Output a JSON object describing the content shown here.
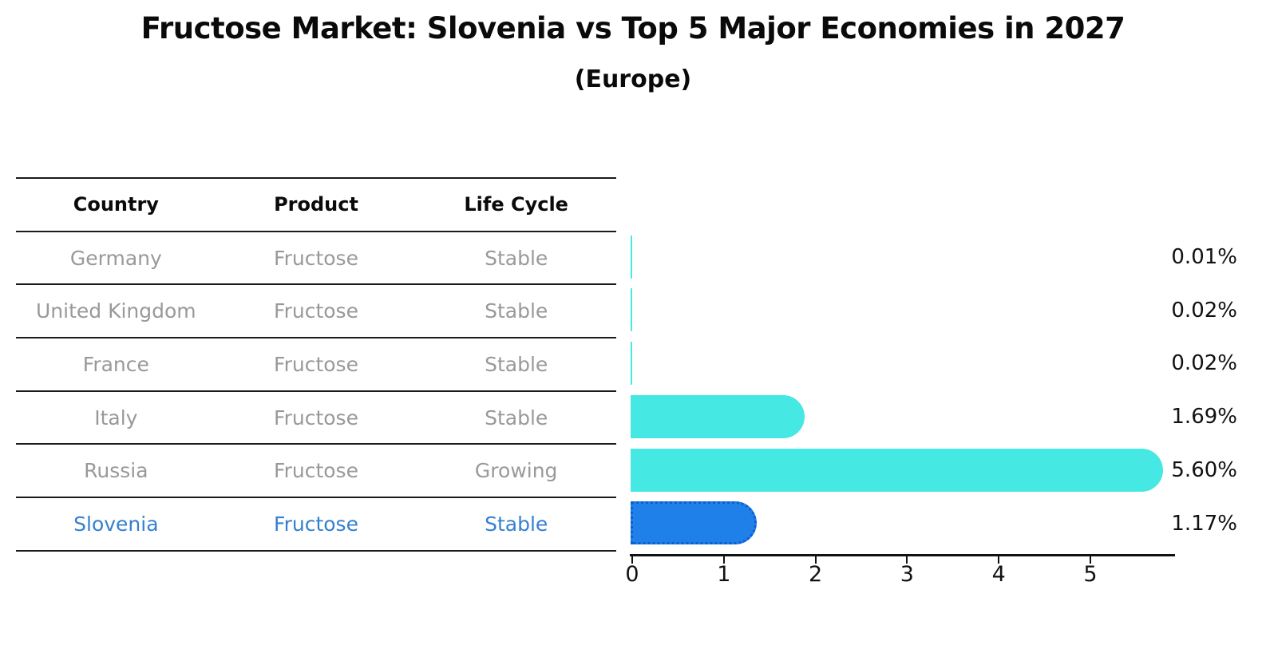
{
  "header": {
    "title": "Fructose Market: Slovenia vs Top 5 Major Economies in 2027",
    "subtitle": "(Europe)"
  },
  "table": {
    "headers": [
      "Country",
      "Product",
      "Life Cycle"
    ],
    "rows": [
      {
        "country": "Germany",
        "product": "Fructose",
        "life_cycle": "Stable",
        "highlighted": false
      },
      {
        "country": "United Kingdom",
        "product": "Fructose",
        "life_cycle": "Stable",
        "highlighted": false
      },
      {
        "country": "France",
        "product": "Fructose",
        "life_cycle": "Stable",
        "highlighted": false
      },
      {
        "country": "Italy",
        "product": "Fructose",
        "life_cycle": "Stable",
        "highlighted": false
      },
      {
        "country": "Russia",
        "product": "Fructose",
        "life_cycle": "Growing",
        "highlighted": false
      },
      {
        "country": "Slovenia",
        "product": "Fructose",
        "life_cycle": "Stable",
        "highlighted": true
      }
    ]
  },
  "chart_data": {
    "type": "bar",
    "orientation": "horizontal",
    "title": "Fructose Market: Slovenia vs Top 5 Major Economies in 2027",
    "subtitle": "(Europe)",
    "categories": [
      "Germany",
      "United Kingdom",
      "France",
      "Italy",
      "Russia",
      "Slovenia"
    ],
    "values": [
      0.01,
      0.02,
      0.02,
      1.69,
      5.6,
      1.17
    ],
    "value_labels": [
      "0.01%",
      "0.02%",
      "0.02%",
      "1.69%",
      "5.60%",
      "1.17%"
    ],
    "x_ticks": [
      0,
      1,
      2,
      3,
      4,
      5
    ],
    "xlim": [
      0,
      5.95
    ],
    "grid": false,
    "legend": null,
    "highlight_index": 5,
    "bar_color": "#45e8e2",
    "highlight_bar_color": "#1f80ea",
    "highlight_bar_edge_color": "#0d5fd0",
    "highlight_text_color": "#3580d0"
  }
}
